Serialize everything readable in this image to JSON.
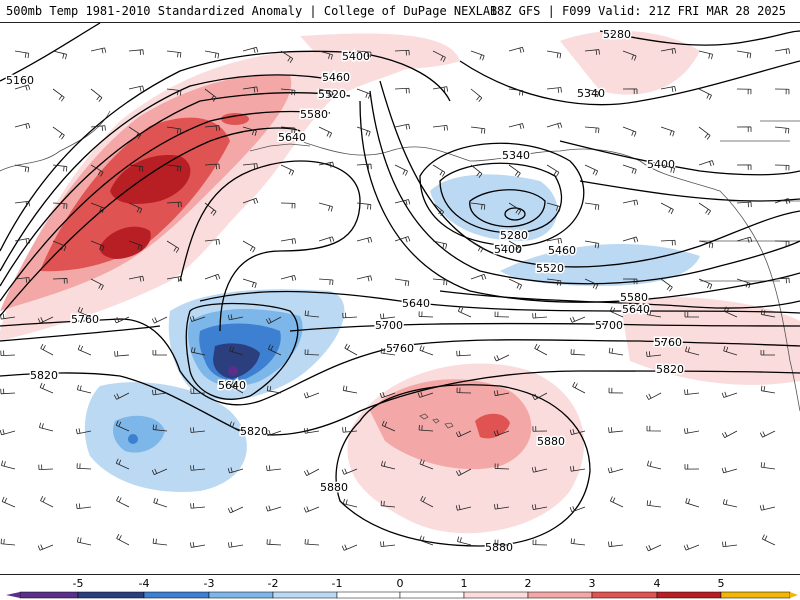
{
  "header": {
    "left_title": "500mb Temp 1981-2010 Standardized Anomaly | College of DuPage NEXLAB",
    "right_title": "18Z GFS | F099 Valid: 21Z FRI MAR 28 2025"
  },
  "colors": {
    "neg5": "#5a2e8a",
    "neg4": "#2b3f7f",
    "neg3": "#3d7fd0",
    "neg2": "#7db6e8",
    "neg1": "#bcd9f3",
    "pos1": "#fbdcdc",
    "pos2": "#f3a7a7",
    "pos3": "#e05353",
    "pos4": "#b81f24",
    "pos5": "#7d0d12",
    "edge_yellow": "#f2b705",
    "contour": "#000000",
    "coast": "#555555"
  },
  "contour_labels": [
    {
      "id": "5160",
      "text": "5160"
    },
    {
      "id": "5280a",
      "text": "5280"
    },
    {
      "id": "5400a",
      "text": "5400"
    },
    {
      "id": "5460a",
      "text": "5460"
    },
    {
      "id": "5520a",
      "text": "5520"
    },
    {
      "id": "5580a",
      "text": "5580"
    },
    {
      "id": "5640a",
      "text": "5640"
    },
    {
      "id": "5340a",
      "text": "5340"
    },
    {
      "id": "5340b",
      "text": "5340"
    },
    {
      "id": "5280b",
      "text": "5280"
    },
    {
      "id": "5400b",
      "text": "5400"
    },
    {
      "id": "5460b",
      "text": "5460"
    },
    {
      "id": "5520b",
      "text": "5520"
    },
    {
      "id": "5400c",
      "text": "5400"
    },
    {
      "id": "5580b",
      "text": "5580"
    },
    {
      "id": "5640b",
      "text": "5640"
    },
    {
      "id": "5640c",
      "text": "5640"
    },
    {
      "id": "5700a",
      "text": "5700"
    },
    {
      "id": "5700b",
      "text": "5700"
    },
    {
      "id": "5760a",
      "text": "5760"
    },
    {
      "id": "5760b",
      "text": "5760"
    },
    {
      "id": "5760c",
      "text": "5760"
    },
    {
      "id": "5820a",
      "text": "5820"
    },
    {
      "id": "5820b",
      "text": "5820"
    },
    {
      "id": "5820c",
      "text": "5820"
    },
    {
      "id": "5640d",
      "text": "5640"
    },
    {
      "id": "5880a",
      "text": "5880"
    },
    {
      "id": "5880b",
      "text": "5880"
    },
    {
      "id": "5880c",
      "text": "5880"
    }
  ],
  "colorbar": {
    "ticks": [
      "-5",
      "-4",
      "-3",
      "-2",
      "-1",
      "0",
      "1",
      "2",
      "3",
      "4",
      "5"
    ]
  }
}
